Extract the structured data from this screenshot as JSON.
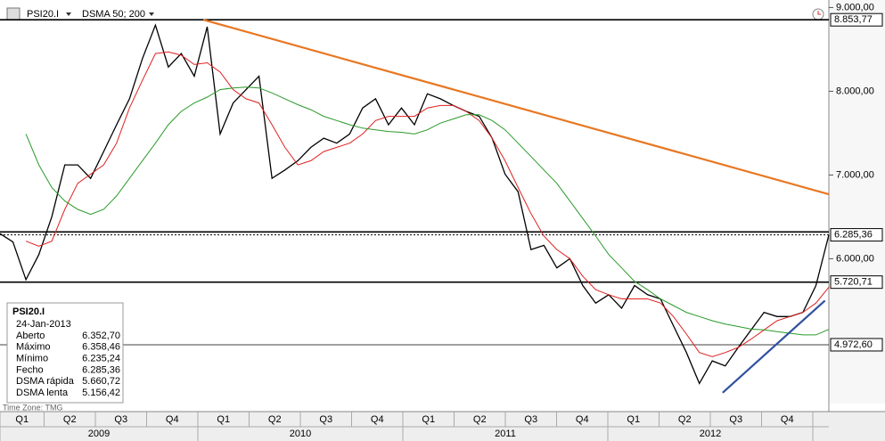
{
  "chart_data": {
    "type": "line",
    "symbol": "PSI20.I",
    "indicator": "DSMA 50; 200",
    "timezone": "Time Zone: TMG",
    "quarters": [
      "Q1",
      "Q2",
      "Q3",
      "Q4",
      "Q1",
      "Q2",
      "Q3",
      "Q4",
      "Q1",
      "Q2",
      "Q3",
      "Q4",
      "Q1",
      "Q2",
      "Q3",
      "Q4"
    ],
    "years": [
      "2009",
      "2010",
      "2011",
      "2012"
    ],
    "ylim": [
      4270,
      9090
    ],
    "yticks": [
      {
        "value": 9000,
        "label": "9.000,00"
      },
      {
        "value": 8000,
        "label": "8.000,00"
      },
      {
        "value": 7000,
        "label": "7.000,00"
      },
      {
        "value": 6000,
        "label": "6.000,00"
      }
    ],
    "series": [
      {
        "name": "PSI20.I",
        "color": "#000000",
        "values": [
          6300,
          6200,
          5750,
          6050,
          6500,
          7120,
          7120,
          6960,
          7280,
          7600,
          7910,
          8390,
          8790,
          8290,
          8450,
          8180,
          8770,
          7490,
          7860,
          8020,
          8180,
          6960,
          7060,
          7170,
          7330,
          7440,
          7380,
          7490,
          7800,
          7910,
          7600,
          7800,
          7600,
          7970,
          7910,
          7830,
          7760,
          7700,
          7440,
          7010,
          6800,
          6110,
          6160,
          5890,
          6000,
          5680,
          5470,
          5570,
          5410,
          5680,
          5570,
          5520,
          5200,
          4880,
          4510,
          4780,
          4720,
          4940,
          5150,
          5360,
          5310,
          5310,
          5360,
          5680,
          6285.36
        ]
      },
      {
        "name": "DSMA rápida",
        "color": "#e02020",
        "values": [
          null,
          null,
          6210,
          6150,
          6210,
          6590,
          6900,
          7010,
          7120,
          7380,
          7800,
          8130,
          8450,
          8470,
          8430,
          8320,
          8340,
          8230,
          8020,
          7910,
          7860,
          7600,
          7330,
          7120,
          7170,
          7280,
          7330,
          7380,
          7490,
          7650,
          7700,
          7700,
          7700,
          7800,
          7830,
          7830,
          7760,
          7650,
          7440,
          7170,
          6850,
          6540,
          6270,
          6110,
          6000,
          5790,
          5630,
          5570,
          5520,
          5520,
          5520,
          5470,
          5310,
          5100,
          4880,
          4830,
          4880,
          4940,
          5040,
          5150,
          5260,
          5310,
          5360,
          5470,
          5660.72
        ]
      },
      {
        "name": "DSMA lenta",
        "color": "#2a9a2a",
        "values": [
          null,
          null,
          7490,
          7120,
          6850,
          6690,
          6590,
          6530,
          6590,
          6750,
          6960,
          7170,
          7380,
          7600,
          7760,
          7860,
          7930,
          8020,
          8040,
          8050,
          8040,
          7980,
          7910,
          7840,
          7780,
          7700,
          7650,
          7600,
          7560,
          7540,
          7520,
          7510,
          7490,
          7540,
          7620,
          7670,
          7720,
          7720,
          7650,
          7540,
          7380,
          7220,
          7060,
          6900,
          6690,
          6480,
          6270,
          6050,
          5890,
          5730,
          5630,
          5520,
          5440,
          5360,
          5310,
          5260,
          5220,
          5190,
          5160,
          5150,
          5130,
          5110,
          5090,
          5090,
          5156.42
        ]
      }
    ],
    "levels": [
      {
        "value": 8853.77,
        "label": "8.853,77",
        "style": "solid"
      },
      {
        "value": 6320,
        "style": "solid"
      },
      {
        "value": 6285.36,
        "label": "6.285,36",
        "style": "dotted"
      },
      {
        "value": 5720.71,
        "label": "5.720,71",
        "style": "solid"
      },
      {
        "value": 4972.6,
        "label": "4.972,60",
        "style": "thin"
      }
    ],
    "trendlines": [
      {
        "color": "#e87722",
        "start": [
          15.7,
          8853.77
        ],
        "end": [
          64,
          6770
        ]
      },
      {
        "color": "#3050a0",
        "start": [
          55.8,
          4400
        ],
        "end": [
          63.7,
          5500
        ]
      }
    ],
    "info_box": {
      "title": "PSI20.I",
      "date": "24-Jan-2013",
      "rows": [
        {
          "label": "Aberto",
          "value": "6.352,70"
        },
        {
          "label": "Máximo",
          "value": "6.358,46"
        },
        {
          "label": "Mínimo",
          "value": "6.235,24"
        },
        {
          "label": "Fecho",
          "value": "6.285,36"
        },
        {
          "label": "DSMA rápida",
          "value": "5.660,72"
        },
        {
          "label": "DSMA lenta",
          "value": "5.156,42"
        }
      ]
    }
  }
}
